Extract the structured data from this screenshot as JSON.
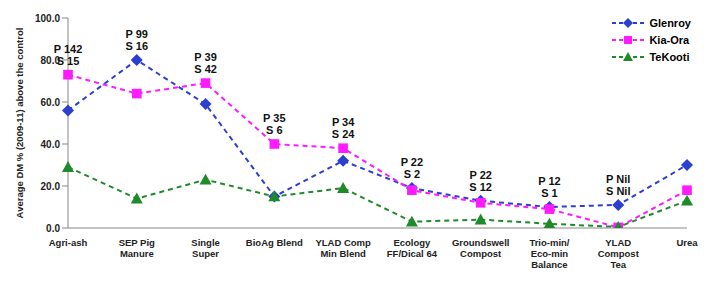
{
  "chart_data": {
    "type": "line",
    "y_label": "Average DM % (2009-11) above the control",
    "categories": [
      "Agri-ash",
      "SEP Pig\nManure",
      "Single\nSuper",
      "BioAg Blend",
      "YLAD Comp\nMin Blend",
      "Ecology\nFF/Dical 64",
      "Groundswell\nCompost",
      "Trio-min/\nEco-min\nBalance",
      "YLAD\nCompost\nTea",
      "Urea"
    ],
    "series": [
      {
        "name": "Glenroy",
        "color": "#2b3fd0",
        "marker": "diamond",
        "line_style": "dashed",
        "values": [
          56,
          80,
          59,
          15,
          32,
          19,
          13,
          10,
          11,
          30
        ]
      },
      {
        "name": "Kia-Ora",
        "color": "#ff1aff",
        "marker": "square",
        "line_style": "dashed",
        "values": [
          73,
          64,
          69,
          40,
          38,
          18,
          12,
          9,
          0.3,
          18
        ]
      },
      {
        "name": "TeKooti",
        "color": "#1f8a2a",
        "marker": "triangle",
        "line_style": "dashed",
        "values": [
          29,
          14,
          23,
          15,
          19,
          3,
          4,
          2,
          0.5,
          13
        ]
      }
    ],
    "ylim": [
      0,
      100
    ],
    "yticks": [
      {
        "value": 0,
        "label": "0.0"
      },
      {
        "value": 20,
        "label": "20.0"
      },
      {
        "value": 40,
        "label": "40.0"
      },
      {
        "value": 60,
        "label": "60.0"
      },
      {
        "value": 80,
        "label": "80.0"
      },
      {
        "value": 100,
        "label": "100.0"
      }
    ],
    "grid": false,
    "legend": "top-right",
    "annotations": [
      {
        "category": "Agri-ash",
        "text": [
          "P 142",
          "S 15"
        ]
      },
      {
        "category": "SEP Pig\nManure",
        "text": [
          "P 99",
          "S 16"
        ]
      },
      {
        "category": "Single\nSuper",
        "text": [
          "P 39",
          "S 42"
        ]
      },
      {
        "category": "BioAg Blend",
        "text": [
          "P 35",
          "S 6"
        ]
      },
      {
        "category": "YLAD Comp\nMin Blend",
        "text": [
          "P 34",
          "S 24"
        ]
      },
      {
        "category": "Ecology\nFF/Dical 64",
        "text": [
          "P 22",
          "S 2"
        ]
      },
      {
        "category": "Groundswell\nCompost",
        "text": [
          "P 22",
          "S 12"
        ]
      },
      {
        "category": "Trio-min/\nEco-min\nBalance",
        "text": [
          "P 12",
          "S 1"
        ]
      },
      {
        "category": "YLAD\nCompost\nTea",
        "text": [
          "P Nil",
          "S Nil"
        ]
      }
    ]
  }
}
